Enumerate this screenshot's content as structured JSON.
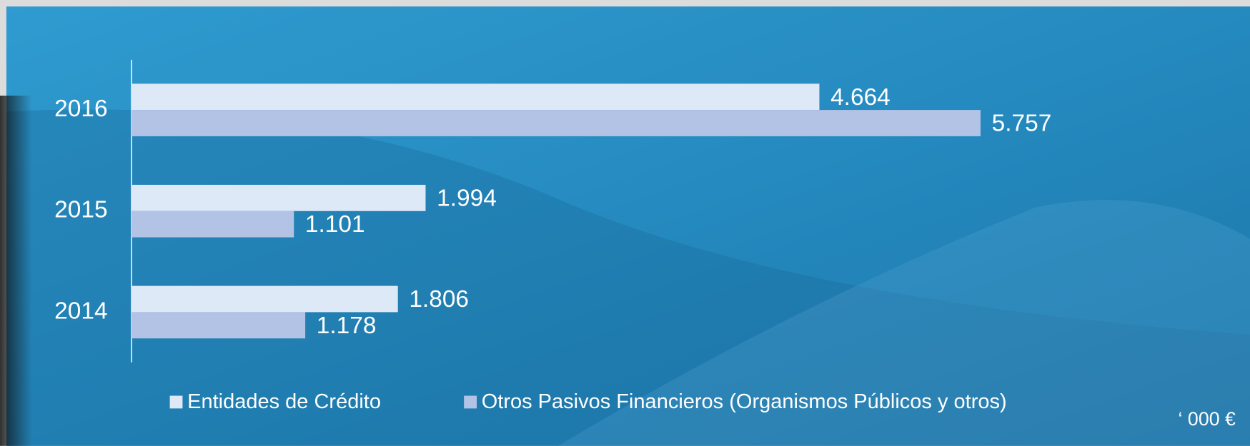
{
  "chart_data": {
    "type": "barh",
    "categories": [
      "2016",
      "2015",
      "2014"
    ],
    "series": [
      {
        "name": "Entidades de Crédito",
        "color": "#dde9f7",
        "values": [
          4664,
          1994,
          1806
        ],
        "value_labels": [
          "4.664",
          "1.994",
          "1.806"
        ]
      },
      {
        "name": "Otros Pasivos Financieros (Organismos Públicos y otros)",
        "color": "#b3c3e6",
        "values": [
          5757,
          1101,
          1178
        ],
        "value_labels": [
          "5.757",
          "1.101",
          "1.178"
        ]
      }
    ],
    "annotation": "‘ 000 €"
  }
}
